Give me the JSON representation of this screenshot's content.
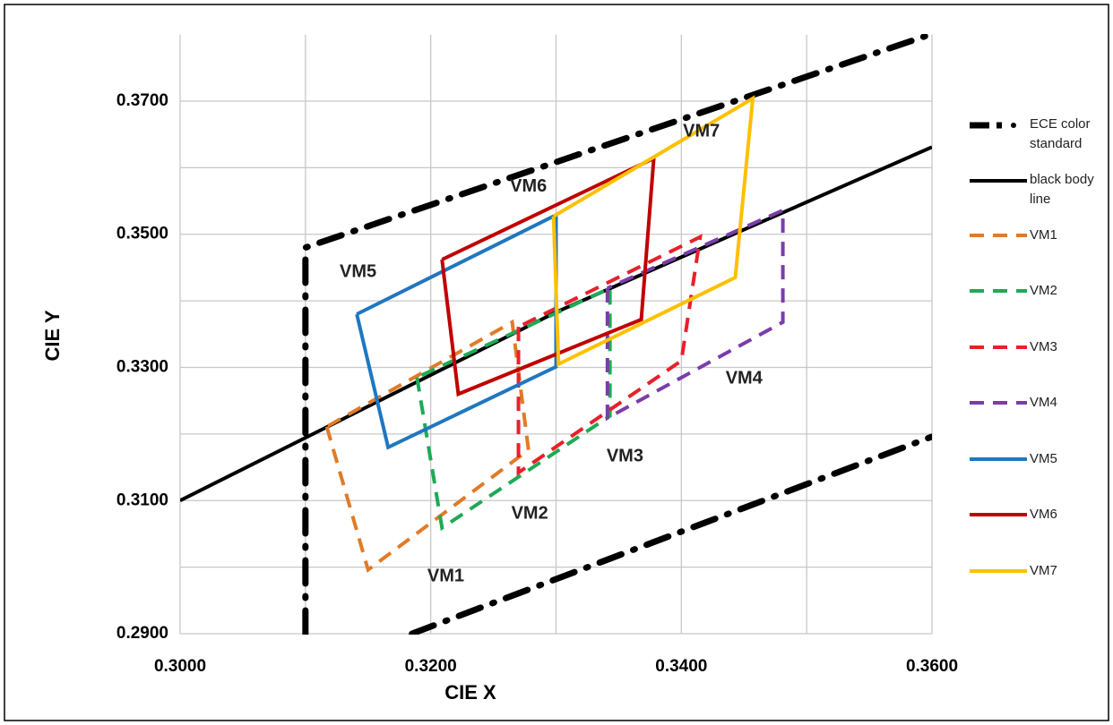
{
  "chart_data": {
    "type": "line",
    "x_label": "CIE X",
    "y_label": "CIE Y",
    "xlim": [
      0.3,
      0.36
    ],
    "ylim": [
      0.29,
      0.38
    ],
    "xticks": [
      {
        "value": 0.3,
        "label": "0.3000"
      },
      {
        "value": 0.32,
        "label": "0.3200"
      },
      {
        "value": 0.34,
        "label": "0.3400"
      },
      {
        "value": 0.36,
        "label": "0.3600"
      }
    ],
    "yticks": [
      {
        "value": 0.29,
        "label": "0.2900"
      },
      {
        "value": 0.31,
        "label": "0.3100"
      },
      {
        "value": 0.33,
        "label": "0.3300"
      },
      {
        "value": 0.35,
        "label": "0.3500"
      },
      {
        "value": 0.37,
        "label": "0.3700"
      }
    ],
    "x_minor_grid": [
      0.31,
      0.33,
      0.35
    ],
    "y_minor_grid": [
      0.3,
      0.32,
      0.34,
      0.36
    ],
    "grid": true,
    "legend": "right",
    "series": [
      {
        "name": "ECE color standard",
        "color": "#000000",
        "style": "dashdot",
        "x": [
          0.31,
          0.31,
          0.36,
          null,
          0.3185,
          0.36
        ],
        "y": [
          0.29,
          0.348,
          0.3801,
          null,
          0.29,
          0.3196
        ]
      },
      {
        "name": "black body line",
        "color": "#000000",
        "style": "solid",
        "x": [
          0.3,
          0.33,
          0.36
        ],
        "y": [
          0.31,
          0.3383,
          0.3631
        ]
      },
      {
        "name": "VM1",
        "color": "#E07B28",
        "style": "dashed",
        "x": [
          0.3117,
          0.315,
          0.3278,
          0.3265,
          0.3117
        ],
        "y": [
          0.3211,
          0.2996,
          0.3176,
          0.3368,
          0.3211
        ]
      },
      {
        "name": "VM2",
        "color": "#1EAA55",
        "style": "dashed",
        "x": [
          0.3189,
          0.3209,
          0.3343,
          0.3343,
          0.3189
        ],
        "y": [
          0.3285,
          0.3059,
          0.3227,
          0.3419,
          0.3285
        ]
      },
      {
        "name": "VM3",
        "color": "#E8202A",
        "style": "dashed",
        "x": [
          0.327,
          0.327,
          0.34,
          0.3415,
          0.327
        ],
        "y": [
          0.3361,
          0.3142,
          0.331,
          0.3496,
          0.3361
        ]
      },
      {
        "name": "VM4",
        "color": "#7A3DA8",
        "style": "dashed",
        "x": [
          0.3341,
          0.3341,
          0.3481,
          0.3481,
          0.3341
        ],
        "y": [
          0.3419,
          0.3224,
          0.3368,
          0.3536,
          0.3419
        ]
      },
      {
        "name": "VM5",
        "color": "#1F77C0",
        "style": "solid",
        "x": [
          0.3141,
          0.3166,
          0.33,
          0.33,
          0.3141
        ],
        "y": [
          0.338,
          0.318,
          0.3301,
          0.3529,
          0.338
        ]
      },
      {
        "name": "VM6",
        "color": "#C00000",
        "style": "solid",
        "x": [
          0.3209,
          0.3222,
          0.3368,
          0.3378,
          0.3209
        ],
        "y": [
          0.3462,
          0.326,
          0.3372,
          0.3614,
          0.3462
        ]
      },
      {
        "name": "VM7",
        "color": "#FFC000",
        "style": "solid",
        "x": [
          0.3298,
          0.3302,
          0.3443,
          0.3457,
          0.3298
        ],
        "y": [
          0.3527,
          0.3305,
          0.3435,
          0.3704,
          0.3527
        ]
      }
    ],
    "annotations": [
      {
        "text": "VM1",
        "x": 0.3212,
        "y": 0.2986
      },
      {
        "text": "VM2",
        "x": 0.3279,
        "y": 0.308
      },
      {
        "text": "VM3",
        "x": 0.3355,
        "y": 0.3166
      },
      {
        "text": "VM4",
        "x": 0.345,
        "y": 0.3283
      },
      {
        "text": "VM5",
        "x": 0.3142,
        "y": 0.3443
      },
      {
        "text": "VM6",
        "x": 0.3278,
        "y": 0.3571
      },
      {
        "text": "VM7",
        "x": 0.3416,
        "y": 0.3654
      }
    ]
  }
}
